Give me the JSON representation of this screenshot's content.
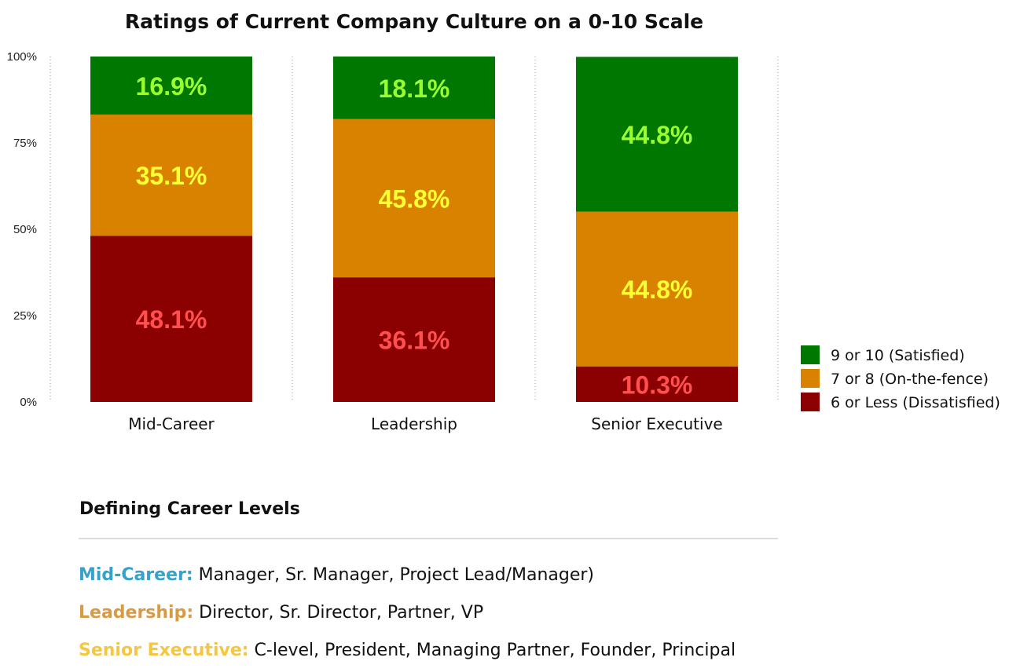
{
  "chart_data": {
    "type": "bar",
    "stacked": true,
    "title": "Ratings of Current Company Culture on a 0-10 Scale",
    "categories": [
      "Mid-Career",
      "Leadership",
      "Senior Executive"
    ],
    "y_ticks": [
      "0%",
      "25%",
      "50%",
      "75%",
      "100%"
    ],
    "ylim": [
      0,
      100
    ],
    "series": [
      {
        "name": "6 or Less (Dissatisfied)",
        "values": [
          48.1,
          36.1,
          10.3
        ],
        "labels": [
          "48.1%",
          "36.1%",
          "10.3%"
        ],
        "color": "#8b0000",
        "label_color": "#ff4f4f"
      },
      {
        "name": "7 or 8 (On-the-fence)",
        "values": [
          35.1,
          45.8,
          44.8
        ],
        "labels": [
          "35.1%",
          "45.8%",
          "44.8%"
        ],
        "color": "#d98200",
        "label_color": "#ffff33"
      },
      {
        "name": "9 or 10 (Satisfied)",
        "values": [
          16.9,
          18.1,
          44.8
        ],
        "labels": [
          "16.9%",
          "18.1%",
          "44.8%"
        ],
        "color": "#007700",
        "label_color": "#9bff2e"
      }
    ],
    "legend": {
      "placement": "right",
      "order": [
        "9 or 10 (Satisfied)",
        "7 or 8 (On-the-fence)",
        "6 or Less (Dissatisfied)"
      ]
    },
    "grid": "vertical dotted separators"
  },
  "definitions": {
    "heading": "Defining Career Levels",
    "items": [
      {
        "term": "Mid-Career:",
        "text": " Manager, Sr. Manager, Project Lead/Manager)",
        "color": "#35a2cc"
      },
      {
        "term": "Leadership:",
        "text": " Director, Sr. Director, Partner, VP",
        "color": "#d89a44"
      },
      {
        "term": "Senior Executive:",
        "text": " C-level, President, Managing Partner, Founder, Principal",
        "color": "#f5c63f"
      }
    ]
  }
}
